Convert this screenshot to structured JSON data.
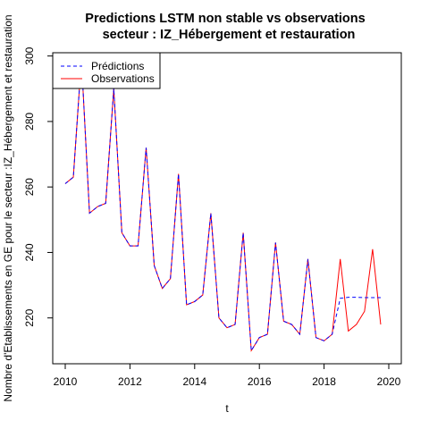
{
  "chart_data": {
    "type": "line",
    "title_line1": "Predictions LSTM non stable vs observations",
    "title_line2": "secteur : IZ_Hébergement et restauration",
    "xlabel": "t",
    "ylabel": "Nombre d'Etablissements en GE pour le secteur :IZ_Hébergement et restauration",
    "xlim": [
      2010,
      2020
    ],
    "ylim": [
      206,
      301
    ],
    "x_ticks": [
      "2010",
      "2012",
      "2014",
      "2016",
      "2018",
      "2020"
    ],
    "y_ticks": [
      "220",
      "240",
      "260",
      "280",
      "300"
    ],
    "legend_position": "top-left",
    "x": [
      2010.0,
      2010.25,
      2010.5,
      2010.75,
      2011.0,
      2011.25,
      2011.5,
      2011.75,
      2012.0,
      2012.25,
      2012.5,
      2012.75,
      2013.0,
      2013.25,
      2013.5,
      2013.75,
      2014.0,
      2014.25,
      2014.5,
      2014.75,
      2015.0,
      2015.25,
      2015.5,
      2015.75,
      2016.0,
      2016.25,
      2016.5,
      2016.75,
      2017.0,
      2017.25,
      2017.5,
      2017.75,
      2018.0,
      2018.25,
      2018.5,
      2018.75,
      2019.0,
      2019.25,
      2019.5,
      2019.75
    ],
    "series": [
      {
        "name": "Observations",
        "color": "#ff0000",
        "style": "solid",
        "values": [
          261,
          263,
          299,
          252,
          254,
          255,
          290,
          246,
          242,
          242,
          272,
          236,
          229,
          232,
          264,
          224,
          225,
          227,
          252,
          220,
          217,
          218,
          246,
          210,
          214,
          215,
          243,
          219,
          218,
          215,
          238,
          214,
          213,
          215,
          238,
          216,
          218,
          222,
          241,
          218
        ]
      },
      {
        "name": "Prédictions",
        "color": "#0000ff",
        "style": "dashed",
        "values": [
          261,
          263,
          299,
          252,
          254,
          255,
          290,
          246,
          242,
          242,
          272,
          236,
          229,
          232,
          264,
          224,
          225,
          227,
          252,
          220,
          217,
          218,
          246,
          210,
          214,
          215,
          243,
          219,
          218,
          215,
          238,
          214,
          213,
          215,
          226,
          226.3,
          226.3,
          226.2,
          226.2,
          226.2
        ]
      }
    ]
  }
}
